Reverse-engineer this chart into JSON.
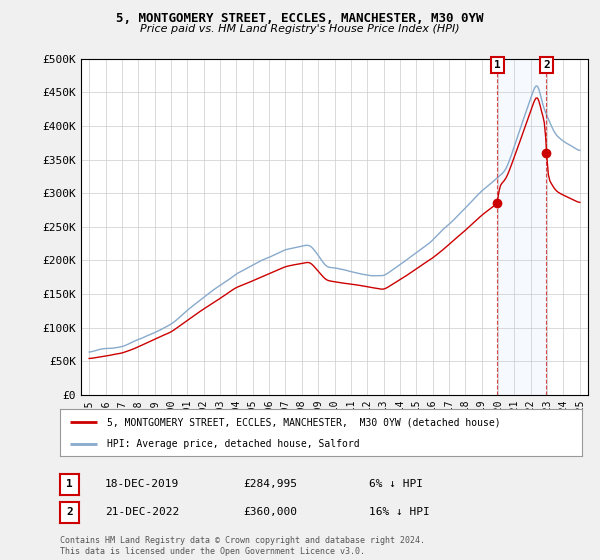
{
  "title": "5, MONTGOMERY STREET, ECCLES, MANCHESTER, M30 0YW",
  "subtitle": "Price paid vs. HM Land Registry's House Price Index (HPI)",
  "footer": "Contains HM Land Registry data © Crown copyright and database right 2024.\nThis data is licensed under the Open Government Licence v3.0.",
  "legend_label_red": "5, MONTGOMERY STREET, ECCLES, MANCHESTER,  M30 0YW (detached house)",
  "legend_label_blue": "HPI: Average price, detached house, Salford",
  "annotation1_date": "18-DEC-2019",
  "annotation1_price": "£284,995",
  "annotation1_pct": "6% ↓ HPI",
  "annotation2_date": "21-DEC-2022",
  "annotation2_price": "£360,000",
  "annotation2_pct": "16% ↓ HPI",
  "ylim": [
    0,
    500000
  ],
  "yticks": [
    0,
    50000,
    100000,
    150000,
    200000,
    250000,
    300000,
    350000,
    400000,
    450000,
    500000
  ],
  "ytick_labels": [
    "£0",
    "£50K",
    "£100K",
    "£150K",
    "£200K",
    "£250K",
    "£300K",
    "£350K",
    "£400K",
    "£450K",
    "£500K"
  ],
  "background_color": "#f0f0f0",
  "plot_bg_color": "#ffffff",
  "red_color": "#cc0000",
  "blue_color": "#88aacc",
  "shade_color": "#ddeeff",
  "grid_color": "#cccccc",
  "sale1_x": 2019.96,
  "sale1_y": 284995,
  "sale2_x": 2022.96,
  "sale2_y": 360000,
  "xlim_left": 1994.5,
  "xlim_right": 2025.5,
  "xtick_years": [
    1995,
    1996,
    1997,
    1998,
    1999,
    2000,
    2001,
    2002,
    2003,
    2004,
    2005,
    2006,
    2007,
    2008,
    2009,
    2010,
    2011,
    2012,
    2013,
    2014,
    2015,
    2016,
    2017,
    2018,
    2019,
    2020,
    2021,
    2022,
    2023,
    2024,
    2025
  ]
}
